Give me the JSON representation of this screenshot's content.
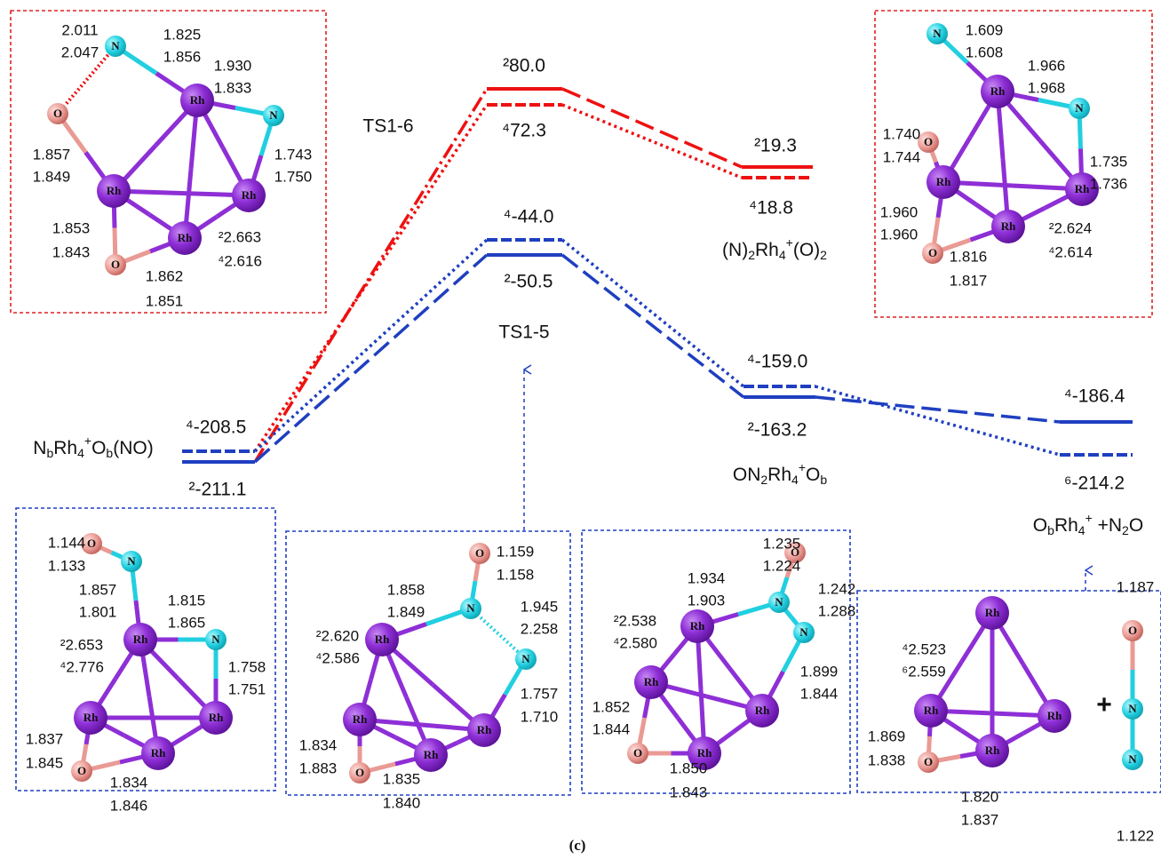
{
  "energy_diagram": {
    "levels": [
      {
        "name": "TS1-6",
        "energies": [
          "²80.0",
          "⁴72.3"
        ]
      },
      {
        "name": [
          "(N)",
          "2",
          "Rh",
          "4",
          "+",
          "(O)",
          "2"
        ],
        "energies": [
          "²19.3",
          "⁴18.8"
        ]
      },
      {
        "name": "TS1-5",
        "energies": [
          "⁴-44.0",
          "²-50.5"
        ]
      },
      {
        "name": [
          "ON",
          "2",
          "Rh",
          "4",
          "+",
          "O",
          "b"
        ],
        "energies": [
          "⁴-159.0",
          "²-163.2"
        ]
      },
      {
        "name": [
          "O",
          "b",
          "Rh",
          "4",
          "+",
          " +N",
          "2",
          "O"
        ],
        "energies": [
          "⁴-186.4",
          "⁶-214.2"
        ]
      },
      {
        "name": [
          "N",
          "b",
          "Rh",
          "4",
          "+",
          "O",
          "b",
          "(NO)"
        ],
        "energies": [
          "⁴-208.5",
          "²-211.1"
        ]
      }
    ],
    "caption": "(c)"
  },
  "structures": [
    {
      "atoms": [
        "N",
        "Rh",
        "N",
        "O",
        "Rh",
        "Rh",
        "Rh",
        "O"
      ],
      "bond_lengths": [
        "2.011",
        "2.047",
        "1.825",
        "1.856",
        "1.930",
        "1.833",
        "1.857",
        "1.849",
        "1.743",
        "1.750",
        "1.853",
        "1.843",
        "²2.663",
        "⁴2.616",
        "1.862",
        "1.851"
      ]
    },
    {
      "atoms": [
        "N",
        "Rh",
        "N",
        "O",
        "Rh",
        "Rh",
        "Rh",
        "O"
      ],
      "bond_lengths": [
        "1.609",
        "1.608",
        "1.966",
        "1.968",
        "1.740",
        "1.744",
        "1.735",
        "1.736",
        "1.960",
        "1.960",
        "²2.624",
        "⁴2.614",
        "1.816",
        "1.817"
      ]
    },
    {
      "atoms": [
        "O",
        "N",
        "Rh",
        "N",
        "Rh",
        "Rh",
        "Rh",
        "O"
      ],
      "bond_lengths": [
        "1.144",
        "1.133",
        "1.857",
        "1.801",
        "1.815",
        "1.865",
        "²2.653",
        "⁴2.776",
        "1.758",
        "1.751",
        "1.837",
        "1.845",
        "1.834",
        "1.846"
      ]
    },
    {
      "atoms": [
        "O",
        "N",
        "N",
        "Rh",
        "Rh",
        "Rh",
        "Rh",
        "O"
      ],
      "bond_lengths": [
        "1.159",
        "1.158",
        "1.858",
        "1.849",
        "1.945",
        "2.258",
        "²2.620",
        "⁴2.586",
        "1.757",
        "1.710",
        "1.834",
        "1.883",
        "1.835",
        "1.840"
      ]
    },
    {
      "atoms": [
        "O",
        "N",
        "N",
        "Rh",
        "Rh",
        "Rh",
        "Rh",
        "O"
      ],
      "bond_lengths": [
        "1.235",
        "1.224",
        "1.934",
        "1.903",
        "1.242",
        "1.288",
        "²2.538",
        "⁴2.580",
        "1.899",
        "1.844",
        "1.852",
        "1.844",
        "1.850",
        "1.843"
      ]
    },
    {
      "atoms": [
        "Rh",
        "Rh",
        "Rh",
        "Rh",
        "O",
        "O",
        "N",
        "N"
      ],
      "plus": "+",
      "bond_lengths": [
        "⁴2.523",
        "⁶2.559",
        "1.869",
        "1.838",
        "1.820",
        "1.837",
        "1.187",
        "1.122"
      ]
    }
  ]
}
